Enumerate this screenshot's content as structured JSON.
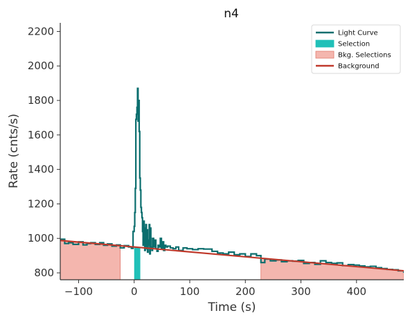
{
  "chart_data": {
    "type": "line",
    "title": "n4",
    "xlabel": "Time (s)",
    "ylabel": "Rate (cnts/s)",
    "xlim": [
      -133,
      485
    ],
    "ylim": [
      760,
      2250
    ],
    "xticks": [
      -100,
      0,
      100,
      200,
      300,
      400
    ],
    "yticks": [
      800,
      1000,
      1200,
      1400,
      1600,
      1800,
      2000,
      2200
    ],
    "grid": false,
    "legend_position": "top-right",
    "colors": {
      "light_curve": "#0b6e6e",
      "selection": "#20c0b8",
      "bkg_selection": "#f4b6ae",
      "background": "#c0392b",
      "axis": "#333333"
    },
    "legend": [
      {
        "label": "Light Curve",
        "kind": "line",
        "color": "#0b6e6e"
      },
      {
        "label": "Selection",
        "kind": "patch",
        "color": "#20c0b8"
      },
      {
        "label": "Bkg. Selections",
        "kind": "patch",
        "color": "#f4b6ae"
      },
      {
        "label": "Background",
        "kind": "line",
        "color": "#c0392b"
      }
    ],
    "selection": [
      0,
      11
    ],
    "bkg_selections": [
      [
        -133,
        -25
      ],
      [
        228,
        485
      ]
    ],
    "background_line": {
      "x": [
        -133,
        485
      ],
      "y": [
        988,
        812
      ]
    },
    "light_curve": {
      "x": [
        -133,
        -125,
        -118,
        -110,
        -100,
        -92,
        -85,
        -78,
        -70,
        -62,
        -55,
        -48,
        -40,
        -32,
        -25,
        -18,
        -10,
        -5,
        -2,
        0,
        1,
        2,
        3,
        4,
        5,
        6,
        7,
        8,
        9,
        10,
        11,
        12,
        13,
        14,
        15,
        16,
        17,
        18,
        19,
        20,
        21,
        22,
        23,
        24,
        25,
        26,
        27,
        28,
        29,
        30,
        31,
        32,
        33,
        35,
        37,
        39,
        41,
        43,
        45,
        47,
        49,
        51,
        53,
        55,
        57,
        60,
        65,
        70,
        75,
        80,
        88,
        95,
        105,
        115,
        125,
        140,
        150,
        160,
        170,
        180,
        190,
        200,
        210,
        220,
        228,
        235,
        245,
        255,
        265,
        275,
        285,
        295,
        305,
        315,
        325,
        335,
        345,
        355,
        365,
        375,
        385,
        395,
        405,
        415,
        425,
        435,
        445,
        455,
        465,
        475,
        485
      ],
      "y": [
        995,
        970,
        975,
        965,
        980,
        962,
        970,
        975,
        965,
        975,
        960,
        968,
        955,
        962,
        945,
        958,
        950,
        942,
        1040,
        1070,
        1150,
        1290,
        1690,
        1720,
        1760,
        1870,
        1680,
        1800,
        1620,
        1350,
        1280,
        1180,
        1150,
        1120,
        1040,
        960,
        1100,
        980,
        930,
        1060,
        1080,
        940,
        1050,
        920,
        990,
        960,
        1080,
        910,
        1060,
        940,
        950,
        930,
        1000,
        950,
        990,
        940,
        925,
        960,
        950,
        1000,
        940,
        980,
        930,
        960,
        950,
        955,
        945,
        940,
        950,
        930,
        945,
        940,
        935,
        940,
        938,
        925,
        915,
        910,
        920,
        905,
        910,
        895,
        910,
        900,
        860,
        880,
        870,
        875,
        865,
        870,
        868,
        872,
        855,
        860,
        850,
        870,
        860,
        855,
        858,
        842,
        848,
        845,
        840,
        835,
        838,
        830,
        825,
        820,
        818,
        812,
        800
      ]
    }
  }
}
